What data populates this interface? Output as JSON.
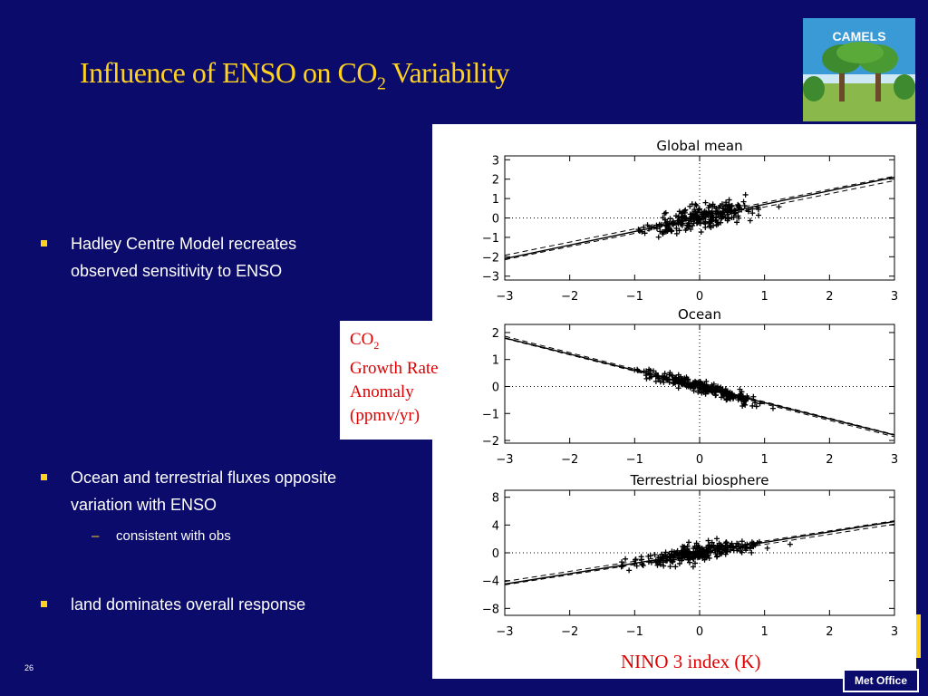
{
  "slide": {
    "title_main": "Influence of ENSO on CO",
    "title_sub": "2",
    "title_rest": " Variability",
    "slide_number": "26",
    "logo_text": "CAMELS",
    "footer_logo": "Met Office",
    "colors": {
      "background": "#0b0b6b",
      "title": "#ffd21e",
      "bullet_mark": "#ffd21e",
      "figure_text": "#e00000"
    }
  },
  "bullets": [
    {
      "line1": "Hadley Centre Model recreates",
      "line2": "observed sensitivity to ENSO"
    },
    {
      "line1": "Ocean and terrestrial fluxes opposite",
      "line2": "variation with ENSO"
    },
    {
      "line1": "land dominates overall response",
      "line2": ""
    }
  ],
  "sub_bullet": "consistent with obs",
  "co2_label": {
    "line1": "CO",
    "line1_sub": "2",
    "line2": "Growth Rate",
    "line3": "Anomaly",
    "line4": "(ppmv/yr)"
  },
  "xaxis_label": "NINO 3 index (K)",
  "chart_data": [
    {
      "type": "scatter",
      "title": "Global mean",
      "xlim": [
        -3,
        3
      ],
      "ylim": [
        -3.2,
        3.2
      ],
      "xticks": [
        -3,
        -2,
        -1,
        0,
        1,
        2,
        3
      ],
      "yticks": [
        -3,
        -2,
        -1,
        0,
        1,
        2,
        3
      ],
      "regression": {
        "slope": 0.7,
        "intercept": 0.0
      },
      "spread": 0.7
    },
    {
      "type": "scatter",
      "title": "Ocean",
      "xlim": [
        -3,
        3
      ],
      "ylim": [
        -2.1,
        2.3
      ],
      "xticks": [
        -3,
        -2,
        -1,
        0,
        1,
        2,
        3
      ],
      "yticks": [
        -2,
        -1,
        0,
        1,
        2
      ],
      "regression": {
        "slope": -0.6,
        "intercept": 0.0
      },
      "spread": 0.25
    },
    {
      "type": "scatter",
      "title": "Terrestrial biosphere",
      "xlim": [
        -3,
        3
      ],
      "ylim": [
        -9,
        9
      ],
      "xticks": [
        -3,
        -2,
        -1,
        0,
        1,
        2,
        3
      ],
      "yticks": [
        -8,
        -4,
        0,
        4,
        8
      ],
      "regression": {
        "slope": 1.5,
        "intercept": 0.0
      },
      "spread": 1.5
    }
  ]
}
